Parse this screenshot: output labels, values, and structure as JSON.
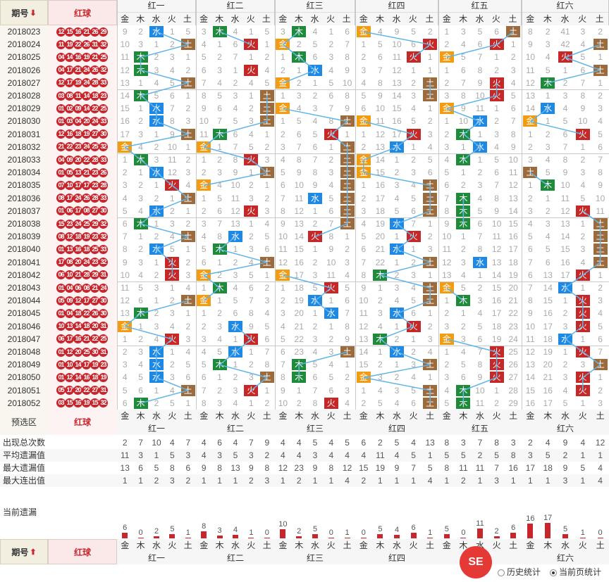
{
  "header": {
    "period_label": "期号",
    "period_arrow": "⬇",
    "red_label": "红球",
    "groups": [
      "红一",
      "红二",
      "红三",
      "红四",
      "红五",
      "红六"
    ],
    "elements": [
      "金",
      "木",
      "水",
      "火",
      "土"
    ]
  },
  "rows": [
    {
      "period": "2018023",
      "balls": [
        "12",
        "15",
        "16",
        "21",
        "26",
        "29"
      ]
    },
    {
      "period": "2018024",
      "balls": [
        "11",
        "19",
        "22",
        "26",
        "31",
        "32"
      ]
    },
    {
      "period": "2018025",
      "balls": [
        "04",
        "14",
        "16",
        "19",
        "21",
        "25"
      ]
    },
    {
      "period": "2018026",
      "balls": [
        "04",
        "17",
        "21",
        "24",
        "26",
        "32"
      ]
    },
    {
      "period": "2018027",
      "balls": [
        "12",
        "17",
        "19",
        "24",
        "28",
        "33"
      ]
    },
    {
      "period": "2018028",
      "balls": [
        "03",
        "08",
        "11",
        "14",
        "18",
        "23"
      ]
    },
    {
      "period": "2018029",
      "balls": [
        "01",
        "02",
        "09",
        "14",
        "22",
        "25"
      ]
    },
    {
      "period": "2018030",
      "balls": [
        "01",
        "03",
        "04",
        "20",
        "24",
        "33"
      ]
    },
    {
      "period": "2018031",
      "balls": [
        "12",
        "16",
        "18",
        "19",
        "27",
        "30"
      ]
    },
    {
      "period": "2018032",
      "balls": [
        "21",
        "22",
        "23",
        "24",
        "25",
        "32"
      ]
    },
    {
      "period": "2018033",
      "balls": [
        "04",
        "09",
        "20",
        "22",
        "28",
        "33"
      ]
    },
    {
      "period": "2018034",
      "balls": [
        "01",
        "05",
        "13",
        "21",
        "23",
        "26"
      ]
    },
    {
      "period": "2018035",
      "balls": [
        "07",
        "10",
        "17",
        "17",
        "23",
        "28"
      ]
    },
    {
      "period": "2018036",
      "balls": [
        "08",
        "17",
        "24",
        "26",
        "28",
        "33"
      ]
    },
    {
      "period": "2018037",
      "balls": [
        "01",
        "06",
        "17",
        "08",
        "27",
        "30"
      ]
    },
    {
      "period": "2018038",
      "balls": [
        "15",
        "23",
        "24",
        "25",
        "29",
        "32"
      ]
    },
    {
      "period": "2018039",
      "balls": [
        "08",
        "12",
        "18",
        "19",
        "23",
        "32"
      ]
    },
    {
      "period": "2018040",
      "balls": [
        "01",
        "13",
        "16",
        "18",
        "25",
        "33"
      ]
    },
    {
      "period": "2018041",
      "balls": [
        "17",
        "08",
        "20",
        "24",
        "23",
        "32"
      ]
    },
    {
      "period": "2018042",
      "balls": [
        "06",
        "10",
        "21",
        "28",
        "29",
        "31"
      ]
    },
    {
      "period": "2018043",
      "balls": [
        "01",
        "04",
        "06",
        "08",
        "21",
        "24"
      ]
    },
    {
      "period": "2018044",
      "balls": [
        "05",
        "09",
        "12",
        "17",
        "27",
        "30"
      ]
    },
    {
      "period": "2018045",
      "balls": [
        "01",
        "04",
        "18",
        "22",
        "26",
        "30"
      ]
    },
    {
      "period": "2018046",
      "balls": [
        "10",
        "13",
        "14",
        "18",
        "20",
        "31"
      ]
    },
    {
      "period": "2018047",
      "balls": [
        "06",
        "17",
        "16",
        "21",
        "22",
        "25"
      ]
    },
    {
      "period": "2018048",
      "balls": [
        "01",
        "12",
        "20",
        "25",
        "30",
        "31"
      ]
    },
    {
      "period": "2018049",
      "balls": [
        "01",
        "10",
        "14",
        "17",
        "19",
        "23"
      ]
    },
    {
      "period": "2018050",
      "balls": [
        "01",
        "12",
        "14",
        "16",
        "18",
        "19"
      ]
    },
    {
      "period": "2018051",
      "balls": [
        "05",
        "17",
        "20",
        "22",
        "27",
        "31"
      ]
    },
    {
      "period": "2018052",
      "balls": [
        "03",
        "15",
        "16",
        "19",
        "15",
        "32"
      ]
    }
  ],
  "cells": [
    [
      "9",
      "2",
      "水",
      "1",
      "5",
      "3",
      "木",
      "4",
      "1",
      "5",
      "3",
      "木",
      "4",
      "1",
      "6",
      "金",
      "4",
      "9",
      "5",
      "2",
      "1",
      "3",
      "5",
      "6",
      "土",
      "8",
      "2",
      "41",
      "3",
      "2"
    ],
    [
      "10",
      "3",
      "1",
      "2",
      "土",
      "4",
      "1",
      "6",
      "火",
      "1",
      "金",
      "2",
      "5",
      "2",
      "7",
      "1",
      "5",
      "10",
      "6",
      "火",
      "2",
      "4",
      "6",
      "火",
      "1",
      "9",
      "3",
      "42",
      "4",
      "土"
    ],
    [
      "11",
      "木",
      "2",
      "3",
      "1",
      "5",
      "2",
      "7",
      "1",
      "2",
      "1",
      "木",
      "6",
      "3",
      "8",
      "2",
      "6",
      "11",
      "火",
      "1",
      "金",
      "5",
      "7",
      "1",
      "2",
      "10",
      "4",
      "火",
      "5",
      "1"
    ],
    [
      "12",
      "木",
      "3",
      "4",
      "2",
      "6",
      "3",
      "1",
      "火",
      "4",
      "2",
      "1",
      "水",
      "4",
      "9",
      "3",
      "7",
      "12",
      "1",
      "1",
      "1",
      "6",
      "8",
      "2",
      "3",
      "11",
      "5",
      "1",
      "6",
      "土"
    ],
    [
      "13",
      "1",
      "4",
      "5",
      "土",
      "7",
      "4",
      "2",
      "4",
      "5",
      "金",
      "2",
      "1",
      "5",
      "10",
      "4",
      "8",
      "13",
      "2",
      "土",
      "2",
      "7",
      "9",
      "火",
      "4",
      "12",
      "木",
      "2",
      "7",
      "1"
    ],
    [
      "14",
      "木",
      "5",
      "6",
      "1",
      "8",
      "5",
      "3",
      "1",
      "土",
      "1",
      "3",
      "2",
      "6",
      "8",
      "5",
      "9",
      "14",
      "3",
      "土",
      "3",
      "8",
      "10",
      "火",
      "5",
      "13",
      "1",
      "3",
      "8",
      "2"
    ],
    [
      "15",
      "1",
      "水",
      "7",
      "2",
      "9",
      "6",
      "4",
      "2",
      "土",
      "金",
      "4",
      "3",
      "7",
      "9",
      "6",
      "10",
      "15",
      "4",
      "1",
      "金",
      "9",
      "11",
      "1",
      "6",
      "14",
      "水",
      "4",
      "9",
      "3"
    ],
    [
      "16",
      "2",
      "水",
      "8",
      "3",
      "10",
      "7",
      "5",
      "3",
      "土",
      "1",
      "5",
      "4",
      "8",
      "土",
      "金",
      "11",
      "16",
      "5",
      "2",
      "1",
      "10",
      "水",
      "2",
      "7",
      "金",
      "1",
      "5",
      "10",
      "4"
    ],
    [
      "17",
      "3",
      "1",
      "9",
      "土",
      "11",
      "木",
      "6",
      "4",
      "1",
      "2",
      "6",
      "5",
      "火",
      "1",
      "1",
      "12",
      "17",
      "火",
      "3",
      "2",
      "木",
      "1",
      "3",
      "8",
      "1",
      "2",
      "6",
      "火",
      "5"
    ],
    [
      "金",
      "4",
      "2",
      "10",
      "1",
      "金",
      "1",
      "7",
      "5",
      "2",
      "3",
      "7",
      "6",
      "1",
      "土",
      "2",
      "13",
      "水",
      "1",
      "4",
      "3",
      "1",
      "水",
      "4",
      "9",
      "2",
      "3",
      "7",
      "1",
      "6"
    ],
    [
      "1",
      "木",
      "3",
      "11",
      "2",
      "1",
      "2",
      "8",
      "火",
      "3",
      "4",
      "8",
      "7",
      "2",
      "土",
      "金",
      "14",
      "1",
      "2",
      "5",
      "4",
      "木",
      "1",
      "5",
      "10",
      "3",
      "4",
      "8",
      "2",
      "7"
    ],
    [
      "2",
      "1",
      "水",
      "12",
      "3",
      "2",
      "3",
      "9",
      "1",
      "土",
      "5",
      "9",
      "8",
      "3",
      "土",
      "金",
      "15",
      "2",
      "3",
      "6",
      "5",
      "1",
      "2",
      "6",
      "11",
      "土",
      "5",
      "9",
      "3",
      "8"
    ],
    [
      "3",
      "2",
      "1",
      "火",
      "4",
      "金",
      "4",
      "10",
      "2",
      "1",
      "6",
      "10",
      "9",
      "4",
      "土",
      "1",
      "16",
      "3",
      "4",
      "土",
      "6",
      "2",
      "3",
      "7",
      "12",
      "1",
      "木",
      "10",
      "4",
      "9"
    ],
    [
      "4",
      "3",
      "2",
      "1",
      "土",
      "1",
      "5",
      "11",
      "3",
      "2",
      "7",
      "11",
      "水",
      "5",
      "土",
      "2",
      "17",
      "4",
      "5",
      "土",
      "7",
      "木",
      "4",
      "8",
      "13",
      "2",
      "1",
      "11",
      "5",
      "10"
    ],
    [
      "5",
      "4",
      "水",
      "2",
      "1",
      "2",
      "6",
      "12",
      "火",
      "3",
      "8",
      "12",
      "1",
      "6",
      "土",
      "3",
      "18",
      "5",
      "6",
      "土",
      "8",
      "木",
      "5",
      "9",
      "14",
      "3",
      "2",
      "12",
      "火",
      "11"
    ],
    [
      "6",
      "木",
      "1",
      "3",
      "2",
      "3",
      "7",
      "13",
      "1",
      "4",
      "9",
      "13",
      "2",
      "7",
      "土",
      "4",
      "19",
      "水",
      "7",
      "1",
      "9",
      "木",
      "6",
      "10",
      "15",
      "4",
      "3",
      "13",
      "1",
      "土"
    ],
    [
      "7",
      "1",
      "2",
      "4",
      "土",
      "4",
      "8",
      "水",
      "2",
      "5",
      "10",
      "14",
      "火",
      "8",
      "1",
      "5",
      "20",
      "1",
      "火",
      "2",
      "10",
      "1",
      "7",
      "11",
      "16",
      "5",
      "4",
      "14",
      "2",
      "土"
    ],
    [
      "8",
      "2",
      "水",
      "5",
      "1",
      "5",
      "木",
      "1",
      "3",
      "6",
      "11",
      "15",
      "1",
      "9",
      "2",
      "6",
      "21",
      "水",
      "1",
      "3",
      "11",
      "2",
      "8",
      "12",
      "17",
      "6",
      "5",
      "15",
      "3",
      "土"
    ],
    [
      "9",
      "3",
      "1",
      "火",
      "2",
      "6",
      "1",
      "2",
      "4",
      "土",
      "12",
      "16",
      "2",
      "10",
      "3",
      "7",
      "22",
      "1",
      "2",
      "土",
      "12",
      "3",
      "水",
      "13",
      "18",
      "7",
      "6",
      "16",
      "4",
      "土"
    ],
    [
      "10",
      "4",
      "2",
      "火",
      "3",
      "金",
      "2",
      "3",
      "5",
      "1",
      "金",
      "17",
      "3",
      "11",
      "4",
      "8",
      "木",
      "2",
      "3",
      "1",
      "13",
      "4",
      "1",
      "14",
      "19",
      "6",
      "13",
      "17",
      "火",
      "1"
    ],
    [
      "11",
      "5",
      "3",
      "1",
      "4",
      "1",
      "木",
      "4",
      "6",
      "2",
      "1",
      "18",
      "5",
      "火",
      "5",
      "9",
      "1",
      "3",
      "4",
      "土",
      "金",
      "5",
      "2",
      "15",
      "20",
      "7",
      "14",
      "水",
      "1",
      "2"
    ],
    [
      "12",
      "6",
      "1",
      "2",
      "土",
      "金",
      "1",
      "5",
      "7",
      "3",
      "2",
      "19",
      "水",
      "1",
      "6",
      "10",
      "2",
      "4",
      "5",
      "土",
      "1",
      "木",
      "3",
      "16",
      "21",
      "8",
      "15",
      "1",
      "火",
      "3"
    ],
    [
      "13",
      "木",
      "2",
      "3",
      "1",
      "1",
      "2",
      "6",
      "8",
      "4",
      "3",
      "20",
      "1",
      "水",
      "7",
      "11",
      "3",
      "水",
      "6",
      "1",
      "2",
      "1",
      "4",
      "17",
      "22",
      "9",
      "16",
      "2",
      "火",
      "4"
    ],
    [
      "金",
      "1",
      "3",
      "4",
      "2",
      "2",
      "3",
      "水",
      "9",
      "5",
      "4",
      "21",
      "2",
      "1",
      "8",
      "12",
      "4",
      "1",
      "火",
      "2",
      "3",
      "2",
      "5",
      "18",
      "23",
      "10",
      "17",
      "3",
      "火",
      "5"
    ],
    [
      "1",
      "2",
      "4",
      "火",
      "3",
      "3",
      "4",
      "1",
      "火",
      "6",
      "5",
      "22",
      "3",
      "2",
      "9",
      "13",
      "木",
      "2",
      "1",
      "3",
      "金",
      "3",
      "6",
      "19",
      "24",
      "11",
      "18",
      "水",
      "1",
      "6"
    ],
    [
      "2",
      "3",
      "水",
      "1",
      "4",
      "4",
      "5",
      "水",
      "1",
      "7",
      "6",
      "23",
      "4",
      "3",
      "土",
      "14",
      "1",
      "水",
      "2",
      "4",
      "1",
      "4",
      "7",
      "火",
      "25",
      "12",
      "19",
      "1",
      "火",
      "7"
    ],
    [
      "3",
      "4",
      "水",
      "2",
      "5",
      "5",
      "木",
      "1",
      "2",
      "8",
      "7",
      "木",
      "5",
      "4",
      "1",
      "15",
      "2",
      "1",
      "3",
      "土",
      "2",
      "5",
      "8",
      "火",
      "26",
      "13",
      "20",
      "2",
      "3",
      "土"
    ],
    [
      "4",
      "5",
      "水",
      "3",
      "6",
      "6",
      "1",
      "2",
      "3",
      "土",
      "8",
      "木",
      "6",
      "5",
      "2",
      "金",
      "3",
      "2",
      "4",
      "1",
      "3",
      "6",
      "9",
      "火",
      "27",
      "14",
      "21",
      "3",
      "火",
      "1"
    ],
    [
      "5",
      "6",
      "1",
      "4",
      "土",
      "7",
      "2",
      "3",
      "火",
      "1",
      "9",
      "1",
      "7",
      "6",
      "3",
      "1",
      "4",
      "3",
      "5",
      "土",
      "4",
      "木",
      "10",
      "1",
      "28",
      "15",
      "16",
      "4",
      "火",
      "2"
    ],
    [
      "6",
      "木",
      "2",
      "5",
      "1",
      "8",
      "3",
      "4",
      "1",
      "2",
      "10",
      "2",
      "8",
      "火",
      "4",
      "2",
      "5",
      "4",
      "6",
      "土",
      "5",
      "木",
      "11",
      "2",
      "29",
      "16",
      "17",
      "5",
      "1",
      "3"
    ]
  ],
  "footer": {
    "preselect_label": "预选区",
    "red_label": "红球",
    "stats": [
      {
        "label": "出现总次数",
        "values": [
          "2",
          "7",
          "10",
          "4",
          "7",
          "4",
          "6",
          "4",
          "7",
          "9",
          "4",
          "4",
          "5",
          "4",
          "5",
          "6",
          "2",
          "5",
          "4",
          "13",
          "8",
          "3",
          "7",
          "8",
          "3",
          "2",
          "4",
          "9",
          "4",
          "12"
        ]
      },
      {
        "label": "平均遗漏值",
        "values": [
          "11",
          "3",
          "1",
          "5",
          "3",
          "4",
          "3",
          "5",
          "3",
          "2",
          "4",
          "4",
          "3",
          "4",
          "4",
          "4",
          "11",
          "4",
          "5",
          "1",
          "5",
          "5",
          "2",
          "5",
          "8",
          "3",
          "5",
          "2",
          "1",
          "1"
        ]
      },
      {
        "label": "最大遗漏值",
        "values": [
          "13",
          "6",
          "5",
          "8",
          "6",
          "9",
          "8",
          "13",
          "9",
          "8",
          "12",
          "23",
          "9",
          "8",
          "12",
          "15",
          "19",
          "9",
          "7",
          "5",
          "8",
          "11",
          "11",
          "7",
          "16",
          "17",
          "18",
          "9",
          "5",
          "4"
        ]
      },
      {
        "label": "最大连出值",
        "values": [
          "1",
          "1",
          "2",
          "3",
          "2",
          "1",
          "1",
          "1",
          "2",
          "3",
          "1",
          "2",
          "1",
          "1",
          "4",
          "2",
          "1",
          "1",
          "1",
          "4",
          "1",
          "2",
          "1",
          "3",
          "1",
          "1",
          "1",
          "3",
          "1",
          "4"
        ]
      }
    ],
    "current_label": "当前遗漏",
    "current_values": [
      "6",
      "0",
      "2",
      "5",
      "1",
      "8",
      "3",
      "4",
      "1",
      "0",
      "10",
      "2",
      "5",
      "0",
      "1",
      "0",
      "5",
      "4",
      "6",
      "1",
      "5",
      "0",
      "11",
      "2",
      "6",
      "16",
      "17",
      "5",
      "1",
      "0"
    ],
    "bottom_period_label": "期号",
    "bottom_period_arrow": "⬆",
    "bottom_red_label": "红球",
    "history_label": "历史统计",
    "current_page_label": "当前页统计",
    "logo_text": "SE"
  },
  "colors": {
    "jin": "#f39c12",
    "mu": "#1e8b3a",
    "shui": "#1e88e5",
    "huo": "#c62828",
    "tu": "#9b6b3e",
    "ball": "#c8262c"
  }
}
